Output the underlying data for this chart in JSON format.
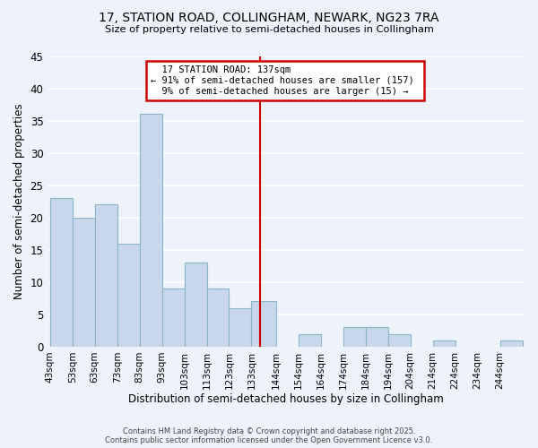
{
  "title_line1": "17, STATION ROAD, COLLINGHAM, NEWARK, NG23 7RA",
  "title_line2": "Size of property relative to semi-detached houses in Collingham",
  "xlabel": "Distribution of semi-detached houses by size in Collingham",
  "ylabel": "Number of semi-detached properties",
  "bar_labels": [
    "43sqm",
    "53sqm",
    "63sqm",
    "73sqm",
    "83sqm",
    "93sqm",
    "103sqm",
    "113sqm",
    "123sqm",
    "133sqm",
    "144sqm",
    "154sqm",
    "164sqm",
    "174sqm",
    "184sqm",
    "194sqm",
    "204sqm",
    "214sqm",
    "224sqm",
    "234sqm",
    "244sqm"
  ],
  "bar_values": [
    23,
    20,
    22,
    16,
    36,
    9,
    13,
    9,
    6,
    7,
    0,
    2,
    0,
    3,
    3,
    2,
    0,
    1,
    0,
    0,
    1
  ],
  "bar_color": "#c8d8ea",
  "bar_edge_color": "#8ab4cc",
  "background_color": "#eef2fa",
  "grid_color": "#ffffff",
  "vline_x": 137,
  "annotation_line1": "17 STATION ROAD: 137sqm",
  "annotation_line2": "← 91% of semi-detached houses are smaller (157)",
  "annotation_line3": "9% of semi-detached houses are larger (15) →",
  "annotation_box_color": "#ffffff",
  "annotation_box_edge": "#cc0000",
  "vline_color": "#cc0000",
  "ylim": [
    0,
    45
  ],
  "yticks": [
    0,
    5,
    10,
    15,
    20,
    25,
    30,
    35,
    40,
    45
  ],
  "bin_edges": [
    43,
    53,
    63,
    73,
    83,
    93,
    103,
    113,
    123,
    133,
    144,
    154,
    164,
    174,
    184,
    194,
    204,
    214,
    224,
    234,
    244,
    254
  ],
  "footnote1": "Contains HM Land Registry data © Crown copyright and database right 2025.",
  "footnote2": "Contains public sector information licensed under the Open Government Licence v3.0."
}
